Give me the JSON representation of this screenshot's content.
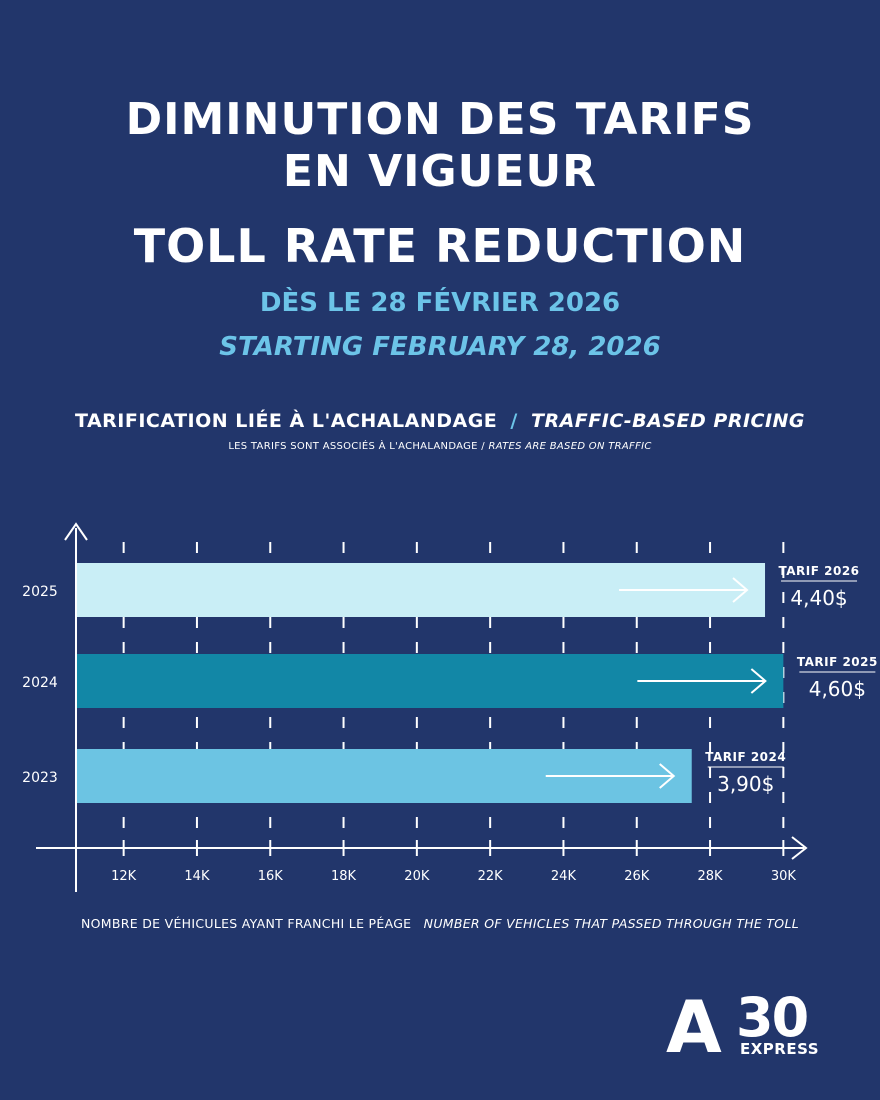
{
  "header": {
    "title_fr_line1": "DIMINUTION DES TARIFS",
    "title_fr_line2": "EN VIGUEUR",
    "title_en": "TOLL RATE REDUCTION",
    "date_fr": "DÈS LE 28 FÉVRIER 2026",
    "date_en": "STARTING FEBRUARY 28, 2026"
  },
  "section": {
    "heading_fr": "TARIFICATION LIÉE À L'ACHALANDAGE",
    "separator": "/",
    "heading_en": "TRAFFIC-BASED PRICING",
    "sub_fr": "LES TARIFS SONT ASSOCIÉS À L'ACHALANDAGE",
    "sub_en": "RATES ARE BASED ON TRAFFIC"
  },
  "chart_data": {
    "type": "bar",
    "orientation": "horizontal",
    "categories": [
      "2025",
      "2024",
      "2023"
    ],
    "values": [
      29500,
      30000,
      27500
    ],
    "x_ticks": [
      "12K",
      "14K",
      "16K",
      "18K",
      "20K",
      "22K",
      "24K",
      "26K",
      "28K",
      "30K"
    ],
    "x_tick_values": [
      12000,
      14000,
      16000,
      18000,
      20000,
      22000,
      24000,
      26000,
      28000,
      30000
    ],
    "xlim": [
      10700,
      31300
    ],
    "bar_labels": [
      {
        "title": "TARIF 2026",
        "price": "4,40$"
      },
      {
        "title": "TARIF 2025",
        "price": "4,60$"
      },
      {
        "title": "TARIF 2024",
        "price": "3,90$"
      }
    ],
    "bar_colors": [
      "#c9eef6",
      "#1287a6",
      "#6cc4e3"
    ],
    "grid": "dashed-vertical",
    "xlabel_fr": "NOMBRE DE VÉHICULES AYANT FRANCHI LE PÉAGE",
    "xlabel_en": "NUMBER OF VEHICLES THAT PASSED THROUGH THE TOLL"
  },
  "logo": {
    "brand": "A30",
    "sub": "EXPRESS"
  },
  "colors": {
    "background": "#22366b",
    "accent": "#6cc4e8",
    "white": "#ffffff"
  }
}
